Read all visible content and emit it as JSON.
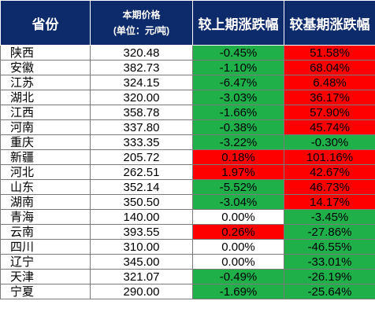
{
  "header": {
    "province": "省份",
    "price_line1": "本期价格",
    "price_line2": "(单位：元/吨)",
    "qoq": "较上期涨跌幅",
    "yoy": "较基期涨跌幅"
  },
  "colors": {
    "header_bg": "#0d2a6b",
    "increase": "#ff0000",
    "decrease": "#1fb04a",
    "neutral": "#ffffff"
  },
  "rows": [
    {
      "province": "陕西",
      "price": "320.48",
      "qoq": "-0.45%",
      "qoq_color": "green",
      "yoy": "51.58%",
      "yoy_color": "red"
    },
    {
      "province": "安徽",
      "price": "382.73",
      "qoq": "-1.10%",
      "qoq_color": "green",
      "yoy": "68.04%",
      "yoy_color": "red"
    },
    {
      "province": "江苏",
      "price": "324.15",
      "qoq": "-6.47%",
      "qoq_color": "green",
      "yoy": "6.48%",
      "yoy_color": "red"
    },
    {
      "province": "湖北",
      "price": "320.00",
      "qoq": "-3.03%",
      "qoq_color": "green",
      "yoy": "36.17%",
      "yoy_color": "red"
    },
    {
      "province": "江西",
      "price": "358.78",
      "qoq": "-1.66%",
      "qoq_color": "green",
      "yoy": "57.90%",
      "yoy_color": "red"
    },
    {
      "province": "河南",
      "price": "337.80",
      "qoq": "-0.38%",
      "qoq_color": "green",
      "yoy": "45.74%",
      "yoy_color": "red"
    },
    {
      "province": "重庆",
      "price": "333.35",
      "qoq": "-3.22%",
      "qoq_color": "green",
      "yoy": "-0.30%",
      "yoy_color": "green"
    },
    {
      "province": "新疆",
      "price": "205.72",
      "qoq": "0.18%",
      "qoq_color": "red",
      "yoy": "101.16%",
      "yoy_color": "red"
    },
    {
      "province": "河北",
      "price": "262.51",
      "qoq": "1.97%",
      "qoq_color": "red",
      "yoy": "42.67%",
      "yoy_color": "red"
    },
    {
      "province": "山东",
      "price": "352.14",
      "qoq": "-5.52%",
      "qoq_color": "green",
      "yoy": "46.73%",
      "yoy_color": "red"
    },
    {
      "province": "湖南",
      "price": "350.50",
      "qoq": "-3.04%",
      "qoq_color": "green",
      "yoy": "14.17%",
      "yoy_color": "red"
    },
    {
      "province": "青海",
      "price": "140.00",
      "qoq": "0.00%",
      "qoq_color": "white",
      "yoy": "-3.45%",
      "yoy_color": "green"
    },
    {
      "province": "云南",
      "price": "393.55",
      "qoq": "0.26%",
      "qoq_color": "red",
      "yoy": "-27.86%",
      "yoy_color": "green"
    },
    {
      "province": "四川",
      "price": "310.00",
      "qoq": "0.00%",
      "qoq_color": "white",
      "yoy": "-46.55%",
      "yoy_color": "green"
    },
    {
      "province": "辽宁",
      "price": "345.00",
      "qoq": "0.00%",
      "qoq_color": "white",
      "yoy": "-33.01%",
      "yoy_color": "green"
    },
    {
      "province": "天津",
      "price": "321.07",
      "qoq": "-0.49%",
      "qoq_color": "green",
      "yoy": "-26.19%",
      "yoy_color": "green"
    },
    {
      "province": "宁夏",
      "price": "290.00",
      "qoq": "-1.69%",
      "qoq_color": "green",
      "yoy": "-25.64%",
      "yoy_color": "green"
    }
  ]
}
